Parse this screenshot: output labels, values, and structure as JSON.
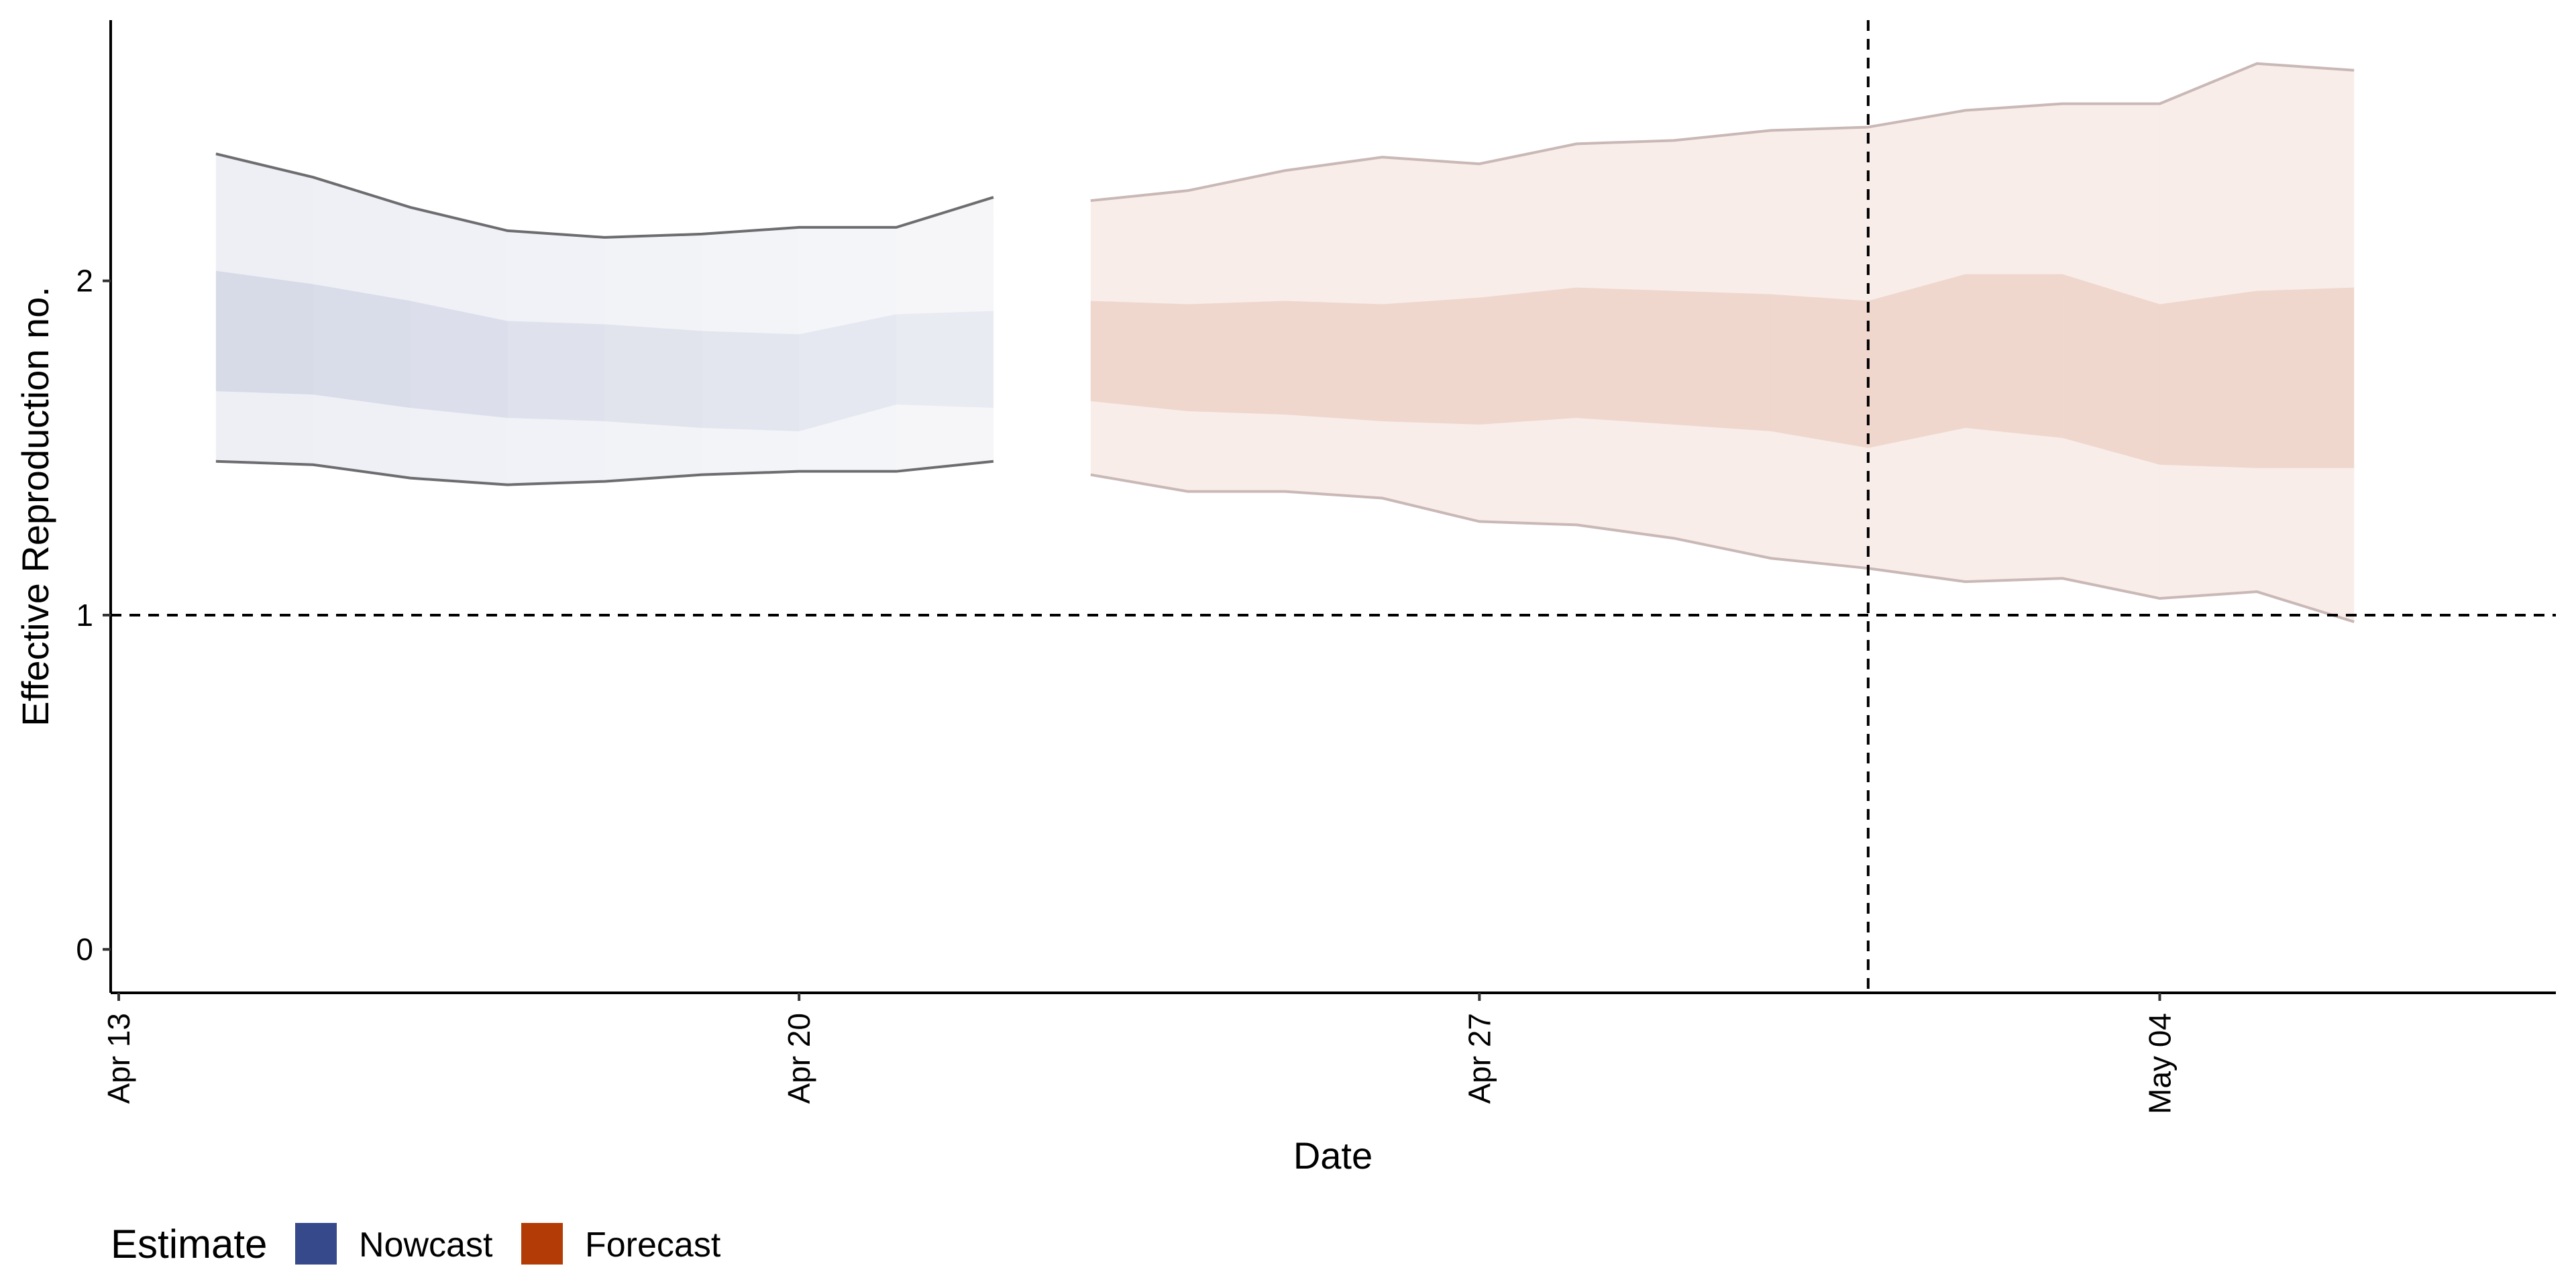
{
  "chart_data": {
    "type": "area",
    "xlabel": "Date",
    "ylabel": "Effective Reproduction no.",
    "x_range": [
      "2020-04-13",
      "2020-05-08"
    ],
    "ylim": [
      -0.13,
      2.78
    ],
    "y_ticks": [
      0,
      1,
      2
    ],
    "y_tick_labels": [
      "0",
      "1",
      "2"
    ],
    "x_ticks": [
      "2020-04-13",
      "2020-04-20",
      "2020-04-27",
      "2020-05-04"
    ],
    "x_tick_labels": [
      "Apr 13",
      "Apr 20",
      "Apr 27",
      "May 04"
    ],
    "grid": false,
    "legend": {
      "title": "Estimate",
      "position": "bottom-left",
      "entries": [
        {
          "label": "Nowcast",
          "color": "#36498a"
        },
        {
          "label": "Forecast",
          "color": "#b33c06"
        }
      ]
    },
    "reference_lines": [
      {
        "axis": "y",
        "value": 1,
        "style": "dashed"
      },
      {
        "axis": "x",
        "value": "2020-05-01",
        "style": "dashed"
      }
    ],
    "series": [
      {
        "name": "Nowcast",
        "x": [
          "2020-04-14",
          "2020-04-15",
          "2020-04-16",
          "2020-04-17",
          "2020-04-18",
          "2020-04-19",
          "2020-04-20",
          "2020-04-21",
          "2020-04-22"
        ],
        "lower90": [
          1.46,
          1.45,
          1.41,
          1.39,
          1.4,
          1.42,
          1.43,
          1.43,
          1.46
        ],
        "lower50": [
          1.67,
          1.66,
          1.62,
          1.59,
          1.58,
          1.56,
          1.55,
          1.63,
          1.62
        ],
        "upper50": [
          2.03,
          1.99,
          1.94,
          1.88,
          1.87,
          1.85,
          1.84,
          1.9,
          1.91
        ],
        "upper90": [
          2.38,
          2.31,
          2.22,
          2.15,
          2.13,
          2.14,
          2.16,
          2.16,
          2.25
        ]
      },
      {
        "name": "Forecast",
        "x": [
          "2020-04-23",
          "2020-04-24",
          "2020-04-25",
          "2020-04-26",
          "2020-04-27",
          "2020-04-28",
          "2020-04-29",
          "2020-04-30",
          "2020-05-01",
          "2020-05-02",
          "2020-05-03",
          "2020-05-04",
          "2020-05-05",
          "2020-05-06"
        ],
        "lower90": [
          1.42,
          1.37,
          1.37,
          1.35,
          1.28,
          1.27,
          1.23,
          1.17,
          1.14,
          1.1,
          1.11,
          1.05,
          1.07,
          0.98
        ],
        "lower50": [
          1.64,
          1.61,
          1.6,
          1.58,
          1.57,
          1.59,
          1.57,
          1.55,
          1.5,
          1.56,
          1.53,
          1.45,
          1.44,
          1.44
        ],
        "upper50": [
          1.94,
          1.93,
          1.94,
          1.93,
          1.95,
          1.98,
          1.97,
          1.96,
          1.94,
          2.02,
          2.02,
          1.93,
          1.97,
          1.98
        ],
        "upper90": [
          2.24,
          2.27,
          2.33,
          2.37,
          2.35,
          2.41,
          2.42,
          2.45,
          2.46,
          2.51,
          2.53,
          2.53,
          2.65,
          2.63
        ]
      }
    ]
  }
}
